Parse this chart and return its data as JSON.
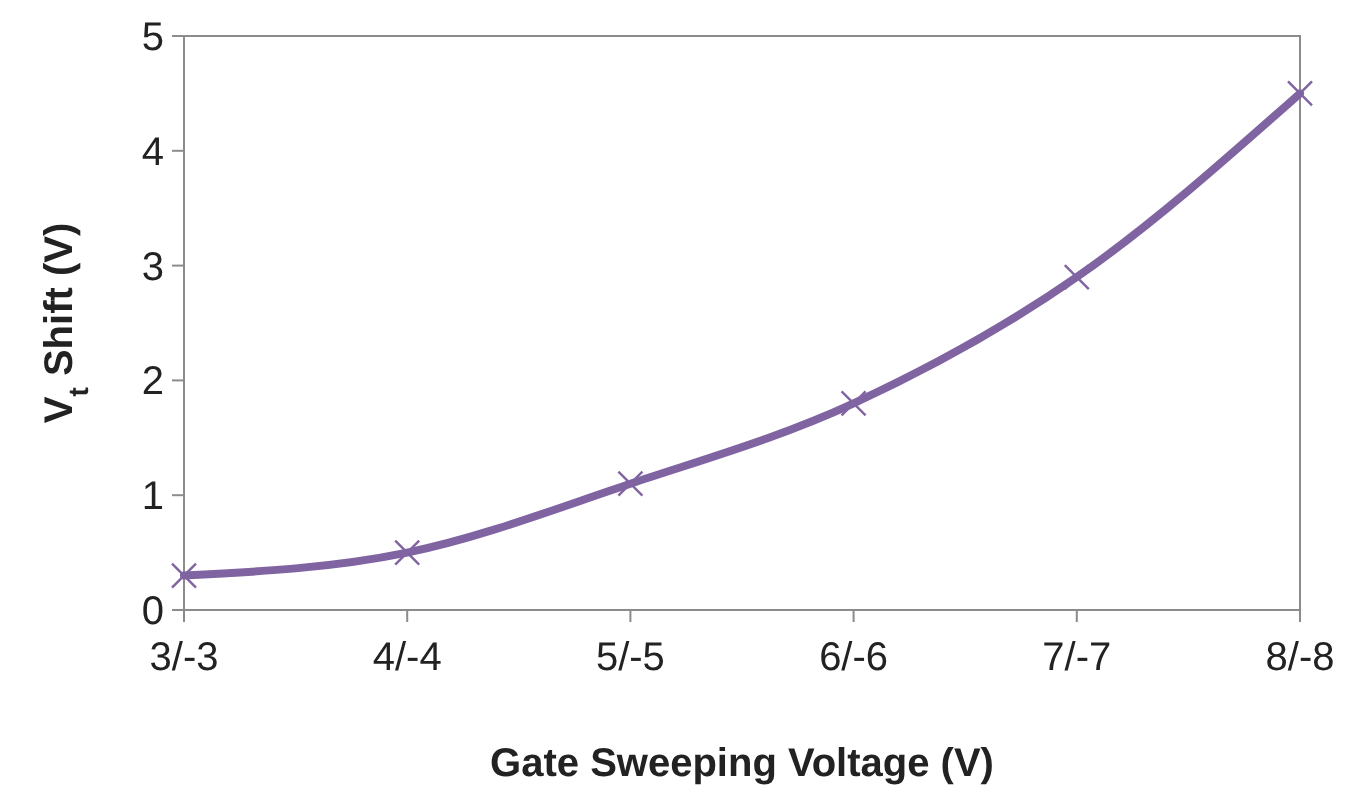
{
  "chart_data": {
    "type": "line",
    "xlabel": "Gate Sweeping Voltage (V)",
    "ylabel": "V$_{t}$ Shift (V)",
    "categories": [
      "3/-3",
      "4/-4",
      "5/-5",
      "6/-6",
      "7/-7",
      "8/-8"
    ],
    "series": [
      {
        "color": "#8064a2",
        "values": [
          0.3,
          0.5,
          1.1,
          1.8,
          2.9,
          4.5
        ]
      }
    ],
    "ylim": [
      0,
      5
    ],
    "yticks": [
      0,
      1,
      2,
      3,
      4,
      5
    ],
    "marker": "cross",
    "line_style": "solid",
    "grid": false
  }
}
